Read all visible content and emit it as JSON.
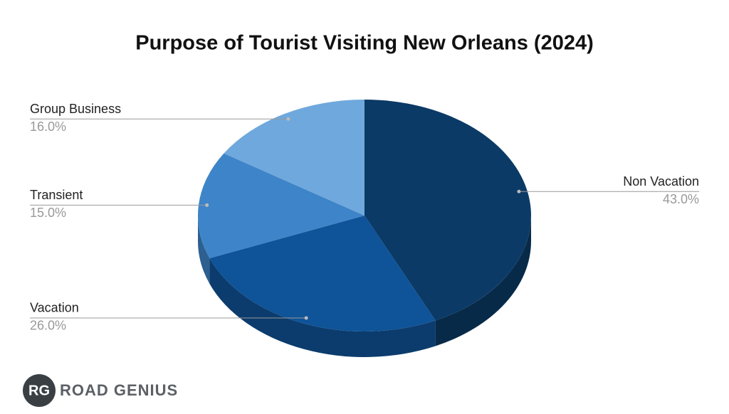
{
  "chart_data": {
    "type": "pie3d",
    "title": "Purpose of Tourist Visiting New Orleans (2024)",
    "categories": [
      "Non Vacation",
      "Vacation",
      "Transient",
      "Group Business"
    ],
    "values": [
      43,
      26,
      15,
      16
    ],
    "value_labels": [
      "43.0%",
      "26.0%",
      "15.0%",
      "16.0%"
    ],
    "colors": [
      "#0b3a66",
      "#0f5398",
      "#3e84c8",
      "#6fa8dc"
    ]
  },
  "logo": {
    "badge": "RG",
    "name": "ROAD GENIUS"
  }
}
